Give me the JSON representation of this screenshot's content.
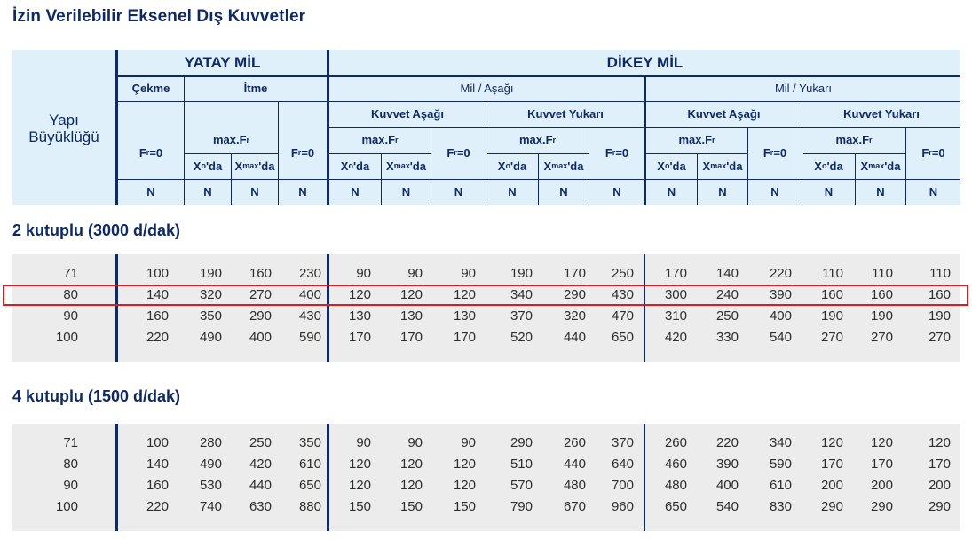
{
  "title": "İzin Verilebilir Eksenel Dış Kuvvetler",
  "header": {
    "yapi": "Yapı",
    "buyuklugu": "Büyüklüğü",
    "yatay": "YATAY MİL",
    "dikey": "DİKEY MİL",
    "cekme": "Çekme",
    "itme": "İtme",
    "mil_asagi": "Mil / Aşağı",
    "mil_yukari": "Mil / Yukarı",
    "kuvvet_asagi": "Kuvvet Aşağı",
    "kuvvet_yukari": "Kuvvet Yukarı",
    "max_f_prefix": "max.F",
    "f_sub": "r",
    "fr0_prefix": "F",
    "fr0_suffix": "=0",
    "x_prefix": "X",
    "x0_sub": "o",
    "xmax_sub": "max",
    "da": "'da",
    "unit": "N"
  },
  "sections": [
    {
      "title": "2 kutuplu (3000 d/dak)",
      "rows": [
        [
          "71",
          "100",
          "190",
          "160",
          "230",
          "90",
          "90",
          "90",
          "190",
          "170",
          "250",
          "170",
          "140",
          "220",
          "110",
          "110",
          "110"
        ],
        [
          "80",
          "140",
          "320",
          "270",
          "400",
          "120",
          "120",
          "120",
          "340",
          "290",
          "430",
          "300",
          "240",
          "390",
          "160",
          "160",
          "160"
        ],
        [
          "90",
          "160",
          "350",
          "290",
          "430",
          "130",
          "130",
          "130",
          "370",
          "320",
          "470",
          "310",
          "250",
          "400",
          "190",
          "190",
          "190"
        ],
        [
          "100",
          "220",
          "490",
          "400",
          "590",
          "170",
          "170",
          "170",
          "520",
          "440",
          "650",
          "420",
          "330",
          "540",
          "270",
          "270",
          "270"
        ]
      ]
    },
    {
      "title": "4 kutuplu (1500 d/dak)",
      "rows": [
        [
          "71",
          "100",
          "280",
          "250",
          "350",
          "90",
          "90",
          "90",
          "290",
          "260",
          "370",
          "260",
          "220",
          "340",
          "120",
          "120",
          "120"
        ],
        [
          "80",
          "140",
          "490",
          "420",
          "610",
          "120",
          "120",
          "120",
          "510",
          "440",
          "640",
          "460",
          "390",
          "590",
          "170",
          "170",
          "170"
        ],
        [
          "90",
          "160",
          "530",
          "440",
          "650",
          "120",
          "120",
          "120",
          "570",
          "480",
          "700",
          "480",
          "400",
          "610",
          "200",
          "200",
          "200"
        ],
        [
          "100",
          "220",
          "740",
          "630",
          "880",
          "150",
          "150",
          "150",
          "790",
          "670",
          "960",
          "650",
          "540",
          "830",
          "290",
          "290",
          "290"
        ]
      ]
    }
  ],
  "highlight_color": "#e0191f",
  "accent_color": "#0f2a63"
}
